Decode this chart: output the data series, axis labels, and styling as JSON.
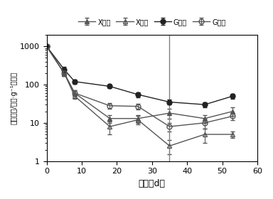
{
  "series": {
    "X保湿": {
      "x": [
        0,
        5,
        8,
        18,
        26,
        35,
        45,
        53
      ],
      "y": [
        1000,
        200,
        60,
        13,
        13,
        18,
        13,
        20
      ],
      "yerr": [
        0,
        30,
        10,
        3,
        3,
        5,
        3,
        5
      ],
      "marker": "^",
      "fillstyle": "full",
      "color": "#555555",
      "linestyle": "-"
    },
    "X滴水": {
      "x": [
        0,
        5,
        8,
        18,
        26,
        35,
        45,
        53
      ],
      "y": [
        1000,
        200,
        50,
        8,
        12,
        2.5,
        5,
        5
      ],
      "yerr": [
        0,
        30,
        8,
        3,
        3,
        1,
        2,
        1
      ],
      "marker": "^",
      "fillstyle": "none",
      "color": "#555555",
      "linestyle": "-"
    },
    "G保湿": {
      "x": [
        0,
        5,
        8,
        18,
        26,
        35,
        45,
        53
      ],
      "y": [
        1000,
        250,
        120,
        90,
        55,
        35,
        30,
        50
      ],
      "yerr": [
        0,
        40,
        15,
        10,
        8,
        5,
        5,
        8
      ],
      "marker": "o",
      "fillstyle": "full",
      "color": "#222222",
      "linestyle": "-"
    },
    "G滴水": {
      "x": [
        0,
        5,
        8,
        18,
        26,
        35,
        45,
        53
      ],
      "y": [
        1000,
        200,
        60,
        28,
        27,
        8,
        10,
        15
      ],
      "yerr": [
        0,
        30,
        10,
        5,
        5,
        2,
        3,
        3
      ],
      "marker": "o",
      "fillstyle": "none",
      "color": "#555555",
      "linestyle": "-"
    }
  },
  "vline_x": 35,
  "xlabel": "时间（d）",
  "ylabel": "病吨浓度/（个·g⁻¹干土）",
  "xlim": [
    0,
    60
  ],
  "ylim_log": [
    1,
    2000
  ],
  "xticks": [
    0,
    10,
    20,
    30,
    40,
    50,
    60
  ],
  "legend_labels": [
    "X保湿",
    "X滴水",
    "G保湿",
    "G滴水"
  ],
  "background_color": "#ffffff"
}
